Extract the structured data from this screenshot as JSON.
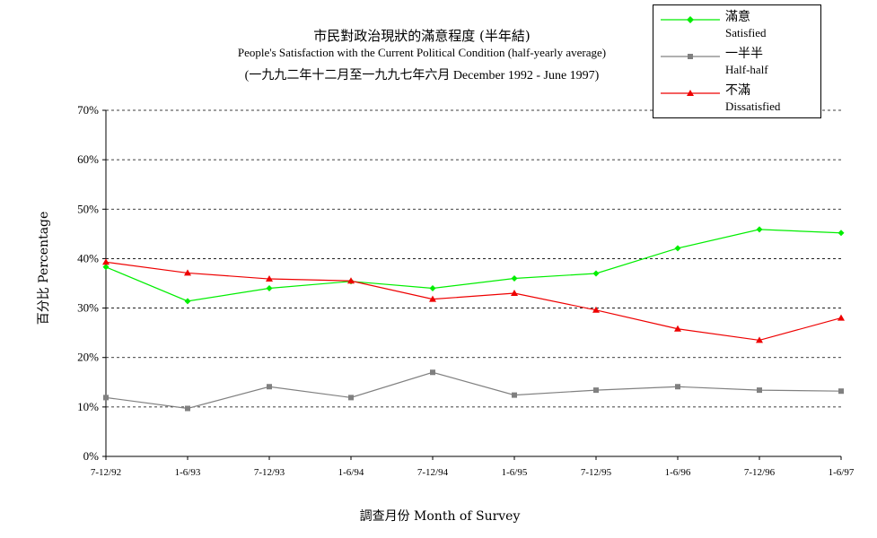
{
  "chart_data": {
    "type": "line",
    "title_zh": "市民對政治現狀的滿意程度 (半年結)",
    "title_en": "People's Satisfaction with the Current Political Condition (half-yearly average)",
    "subtitle": "(一九九二年十二月至一九九七年六月 December 1992 - June 1997)",
    "xlabel": "調查月份 Month of Survey",
    "ylabel": "百分比 Percentage",
    "categories": [
      "7-12/92",
      "1-6/93",
      "7-12/93",
      "1-6/94",
      "7-12/94",
      "1-6/95",
      "7-12/95",
      "1-6/96",
      "7-12/96",
      "1-6/97"
    ],
    "ylim": [
      0,
      70
    ],
    "yticks": [
      "0%",
      "10%",
      "20%",
      "30%",
      "40%",
      "50%",
      "60%",
      "70%"
    ],
    "grid": "horizontal dashed",
    "legend_position": "top-right",
    "series": [
      {
        "name_zh": "滿意",
        "name_en": "Satisfied",
        "color": "#00ee00",
        "marker": "diamond",
        "values": [
          38.3,
          31.4,
          34.0,
          35.4,
          34.0,
          36.0,
          37.0,
          42.1,
          45.9,
          45.2
        ]
      },
      {
        "name_zh": "一半半",
        "name_en": "Half-half",
        "color": "#808080",
        "marker": "square",
        "values": [
          11.9,
          9.7,
          14.1,
          11.9,
          17.0,
          12.4,
          13.4,
          14.1,
          13.4,
          13.2
        ]
      },
      {
        "name_zh": "不滿",
        "name_en": "Dissatisfied",
        "color": "#ee0000",
        "marker": "triangle",
        "values": [
          39.3,
          37.1,
          35.9,
          35.5,
          31.8,
          33.0,
          29.6,
          25.8,
          23.5,
          28.0
        ]
      }
    ]
  }
}
